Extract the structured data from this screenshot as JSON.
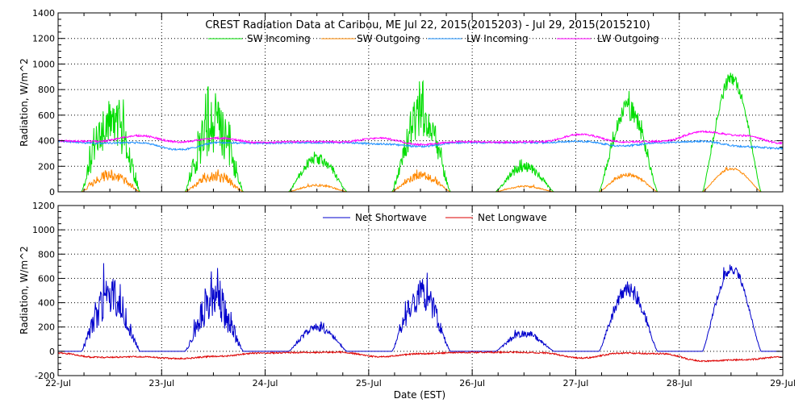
{
  "chart_data": [
    {
      "type": "line",
      "title": "CREST Radiation Data at Caribou, ME   Jul 22, 2015(2015203) - Jul 29, 2015(2015210)",
      "xlabel": "",
      "ylabel": "Radiation, W/m^2",
      "xlim": [
        0,
        7
      ],
      "ylim": [
        0,
        1400
      ],
      "yticks": [
        "0",
        "200",
        "400",
        "600",
        "800",
        "1000",
        "1200",
        "1400"
      ],
      "grid": true,
      "legend_position": "top",
      "series": [
        {
          "name": "SW Incoming",
          "color": "#00dd00",
          "baseline": 0,
          "daily_peak_envelope": [
            800,
            760,
            300,
            780,
            240,
            740,
            950
          ],
          "daily_max_spike": [
            1030,
            880,
            320,
            870,
            260,
            790,
            980
          ],
          "variability": [
            0.55,
            0.6,
            0.3,
            0.45,
            0.35,
            0.25,
            0.12
          ]
        },
        {
          "name": "SW Outgoing",
          "color": "#ff8800",
          "baseline": 0,
          "daily_peak_envelope": [
            175,
            160,
            60,
            160,
            50,
            150,
            190
          ],
          "daily_max_spike": [
            210,
            180,
            70,
            180,
            60,
            165,
            200
          ],
          "variability": [
            0.5,
            0.5,
            0.3,
            0.4,
            0.3,
            0.2,
            0.1
          ]
        },
        {
          "name": "LW Incoming",
          "color": "#1e90ff",
          "baseline": 380,
          "levels": [
            395,
            380,
            385,
            330,
            385,
            380,
            385,
            385,
            375,
            355,
            385,
            385,
            385,
            395,
            360,
            385,
            395,
            355,
            340
          ]
        },
        {
          "name": "LW Outgoing",
          "color": "#ff00ff",
          "baseline": 390,
          "levels": [
            398,
            395,
            440,
            390,
            420,
            385,
            392,
            390,
            420,
            370,
            392,
            388,
            392,
            450,
            390,
            395,
            470,
            440,
            380
          ]
        }
      ]
    },
    {
      "type": "line",
      "title": "",
      "xlabel": "Date (EST)",
      "ylabel": "Radiation, W/m^2",
      "xlim": [
        0,
        7
      ],
      "ylim": [
        -200,
        1200
      ],
      "yticks": [
        "-200",
        "0",
        "200",
        "400",
        "600",
        "800",
        "1000",
        "1200"
      ],
      "xticks": [
        "22-Jul",
        "23-Jul",
        "24-Jul",
        "25-Jul",
        "26-Jul",
        "27-Jul",
        "28-Jul",
        "29-Jul"
      ],
      "grid": true,
      "legend_position": "top",
      "series": [
        {
          "name": "Net Shortwave",
          "color": "#0000cc",
          "baseline": 0,
          "daily_peak_envelope": [
            620,
            560,
            230,
            600,
            180,
            580,
            720
          ],
          "daily_max_spike": [
            810,
            700,
            250,
            690,
            210,
            610,
            780
          ],
          "variability": [
            0.55,
            0.6,
            0.3,
            0.45,
            0.35,
            0.25,
            0.12
          ]
        },
        {
          "name": "Net Longwave",
          "color": "#dd0000",
          "baseline": -10,
          "levels": [
            -15,
            -50,
            -45,
            -60,
            -40,
            -15,
            -10,
            -8,
            -45,
            -20,
            -10,
            -8,
            -12,
            -55,
            -15,
            -20,
            -80,
            -70,
            -45
          ]
        }
      ]
    }
  ]
}
